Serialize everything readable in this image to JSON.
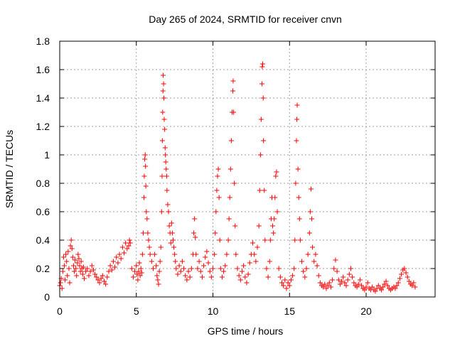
{
  "chart_data": {
    "type": "scatter",
    "title": "Day 265 of 2024, SRMTID for receiver cnvn",
    "xlabel": "GPS time / hours",
    "ylabel": "SRMTID / TECUs",
    "xlim": [
      0,
      24.5
    ],
    "ylim": [
      0,
      1.8
    ],
    "xticks": [
      0,
      5,
      10,
      15,
      20
    ],
    "xtick_labels": [
      "0",
      "5",
      "10",
      "15",
      "20"
    ],
    "yticks": [
      0,
      0.2,
      0.4,
      0.6,
      0.8,
      1.0,
      1.2,
      1.4,
      1.6,
      1.8
    ],
    "ytick_labels": [
      "0",
      "0.2",
      "0.4",
      "0.6",
      "0.8",
      "1",
      "1.2",
      "1.4",
      "1.6",
      "1.8"
    ],
    "grid": true,
    "marker": "+",
    "marker_color": "#ff0000",
    "series": [
      {
        "name": "cnvn",
        "points": [
          [
            0.0,
            0.08
          ],
          [
            0.05,
            0.1
          ],
          [
            0.1,
            0.13
          ],
          [
            0.15,
            0.06
          ],
          [
            0.2,
            0.18
          ],
          [
            0.25,
            0.28
          ],
          [
            0.3,
            0.22
          ],
          [
            0.35,
            0.12
          ],
          [
            0.4,
            0.3
          ],
          [
            0.45,
            0.25
          ],
          [
            0.5,
            0.15
          ],
          [
            0.55,
            0.32
          ],
          [
            0.6,
            0.2
          ],
          [
            0.65,
            0.1
          ],
          [
            0.7,
            0.36
          ],
          [
            0.75,
            0.4
          ],
          [
            0.8,
            0.34
          ],
          [
            0.85,
            0.28
          ],
          [
            0.9,
            0.22
          ],
          [
            0.95,
            0.18
          ],
          [
            1.0,
            0.26
          ],
          [
            1.05,
            0.2
          ],
          [
            1.1,
            0.15
          ],
          [
            1.15,
            0.24
          ],
          [
            1.2,
            0.3
          ],
          [
            1.25,
            0.27
          ],
          [
            1.3,
            0.22
          ],
          [
            1.35,
            0.18
          ],
          [
            1.4,
            0.25
          ],
          [
            1.45,
            0.2
          ],
          [
            1.5,
            0.16
          ],
          [
            1.55,
            0.21
          ],
          [
            1.6,
            0.13
          ],
          [
            1.7,
            0.18
          ],
          [
            1.8,
            0.2
          ],
          [
            1.9,
            0.15
          ],
          [
            2.0,
            0.18
          ],
          [
            2.1,
            0.22
          ],
          [
            2.2,
            0.19
          ],
          [
            2.3,
            0.16
          ],
          [
            2.4,
            0.14
          ],
          [
            2.5,
            0.12
          ],
          [
            2.6,
            0.1
          ],
          [
            2.7,
            0.13
          ],
          [
            2.8,
            0.15
          ],
          [
            2.9,
            0.11
          ],
          [
            3.0,
            0.09
          ],
          [
            3.1,
            0.14
          ],
          [
            3.2,
            0.18
          ],
          [
            3.3,
            0.22
          ],
          [
            3.4,
            0.19
          ],
          [
            3.5,
            0.25
          ],
          [
            3.6,
            0.21
          ],
          [
            3.7,
            0.28
          ],
          [
            3.8,
            0.24
          ],
          [
            3.9,
            0.3
          ],
          [
            4.0,
            0.27
          ],
          [
            4.1,
            0.35
          ],
          [
            4.2,
            0.31
          ],
          [
            4.3,
            0.38
          ],
          [
            4.4,
            0.34
          ],
          [
            4.5,
            0.36
          ],
          [
            4.55,
            0.4
          ],
          [
            4.6,
            0.38
          ],
          [
            4.7,
            0.2
          ],
          [
            4.8,
            0.14
          ],
          [
            4.9,
            0.18
          ],
          [
            5.0,
            0.22
          ],
          [
            5.05,
            0.16
          ],
          [
            5.1,
            0.12
          ],
          [
            5.15,
            0.18
          ],
          [
            5.2,
            0.24
          ],
          [
            5.25,
            0.15
          ],
          [
            5.3,
            0.2
          ],
          [
            5.35,
            0.17
          ],
          [
            5.4,
            0.3
          ],
          [
            5.45,
            0.45
          ],
          [
            5.5,
            0.7
          ],
          [
            5.52,
            0.85
          ],
          [
            5.55,
            0.97
          ],
          [
            5.58,
            1.0
          ],
          [
            5.6,
            0.92
          ],
          [
            5.62,
            0.78
          ],
          [
            5.65,
            0.6
          ],
          [
            5.7,
            0.55
          ],
          [
            5.75,
            0.45
          ],
          [
            5.8,
            0.4
          ],
          [
            5.85,
            0.35
          ],
          [
            5.9,
            0.3
          ],
          [
            6.0,
            0.25
          ],
          [
            6.1,
            0.2
          ],
          [
            6.2,
            0.3
          ],
          [
            6.3,
            0.22
          ],
          [
            6.35,
            0.15
          ],
          [
            6.4,
            0.12
          ],
          [
            6.45,
            0.09
          ],
          [
            6.5,
            0.18
          ],
          [
            6.55,
            0.25
          ],
          [
            6.6,
            0.35
          ],
          [
            6.65,
            0.6
          ],
          [
            6.68,
            0.85
          ],
          [
            6.7,
            1.1
          ],
          [
            6.72,
            1.3
          ],
          [
            6.74,
            1.45
          ],
          [
            6.75,
            1.56
          ],
          [
            6.78,
            1.5
          ],
          [
            6.8,
            1.4
          ],
          [
            6.82,
            1.25
          ],
          [
            6.85,
            1.18
          ],
          [
            6.88,
            1.05
          ],
          [
            6.9,
            1.0
          ],
          [
            6.92,
            0.95
          ],
          [
            6.95,
            0.9
          ],
          [
            6.98,
            0.85
          ],
          [
            7.0,
            0.75
          ],
          [
            7.05,
            0.65
          ],
          [
            7.1,
            0.6
          ],
          [
            7.15,
            0.5
          ],
          [
            7.2,
            0.45
          ],
          [
            7.25,
            0.38
          ],
          [
            7.3,
            0.52
          ],
          [
            7.35,
            0.45
          ],
          [
            7.4,
            0.4
          ],
          [
            7.45,
            0.35
          ],
          [
            7.5,
            0.3
          ],
          [
            7.55,
            0.25
          ],
          [
            7.6,
            0.2
          ],
          [
            7.7,
            0.16
          ],
          [
            7.8,
            0.22
          ],
          [
            7.9,
            0.18
          ],
          [
            8.0,
            0.25
          ],
          [
            8.1,
            0.2
          ],
          [
            8.2,
            0.15
          ],
          [
            8.3,
            0.12
          ],
          [
            8.4,
            0.18
          ],
          [
            8.5,
            0.14
          ],
          [
            8.6,
            0.2
          ],
          [
            8.7,
            0.3
          ],
          [
            8.75,
            0.45
          ],
          [
            8.8,
            0.55
          ],
          [
            8.85,
            0.42
          ],
          [
            8.9,
            0.3
          ],
          [
            9.0,
            0.2
          ],
          [
            9.1,
            0.25
          ],
          [
            9.2,
            0.18
          ],
          [
            9.3,
            0.14
          ],
          [
            9.4,
            0.22
          ],
          [
            9.5,
            0.28
          ],
          [
            9.6,
            0.32
          ],
          [
            9.7,
            0.24
          ],
          [
            9.8,
            0.18
          ],
          [
            9.9,
            0.14
          ],
          [
            10.0,
            0.2
          ],
          [
            10.1,
            0.3
          ],
          [
            10.15,
            0.45
          ],
          [
            10.2,
            0.6
          ],
          [
            10.25,
            0.75
          ],
          [
            10.3,
            0.85
          ],
          [
            10.35,
            0.9
          ],
          [
            10.4,
            0.7
          ],
          [
            10.45,
            0.4
          ],
          [
            10.5,
            0.2
          ],
          [
            10.6,
            0.14
          ],
          [
            10.7,
            0.18
          ],
          [
            10.8,
            0.22
          ],
          [
            10.9,
            0.3
          ],
          [
            11.0,
            0.4
          ],
          [
            11.05,
            0.55
          ],
          [
            11.1,
            0.7
          ],
          [
            11.15,
            0.9
          ],
          [
            11.2,
            1.1
          ],
          [
            11.25,
            1.3
          ],
          [
            11.3,
            1.45
          ],
          [
            11.32,
            1.52
          ],
          [
            11.35,
            1.3
          ],
          [
            11.4,
            0.8
          ],
          [
            11.45,
            0.5
          ],
          [
            11.5,
            0.3
          ],
          [
            11.6,
            0.2
          ],
          [
            11.7,
            0.15
          ],
          [
            11.8,
            0.12
          ],
          [
            11.9,
            0.18
          ],
          [
            12.0,
            0.22
          ],
          [
            12.1,
            0.14
          ],
          [
            12.2,
            0.1
          ],
          [
            12.3,
            0.16
          ],
          [
            12.4,
            0.24
          ],
          [
            12.5,
            0.3
          ],
          [
            12.6,
            0.38
          ],
          [
            12.7,
            0.3
          ],
          [
            12.8,
            0.25
          ],
          [
            12.9,
            0.35
          ],
          [
            13.0,
            0.5
          ],
          [
            13.05,
            0.75
          ],
          [
            13.1,
            1.0
          ],
          [
            13.15,
            1.25
          ],
          [
            13.2,
            1.5
          ],
          [
            13.22,
            1.62
          ],
          [
            13.25,
            1.64
          ],
          [
            13.28,
            1.4
          ],
          [
            13.3,
            1.1
          ],
          [
            13.35,
            0.75
          ],
          [
            13.4,
            0.4
          ],
          [
            13.5,
            0.2
          ],
          [
            13.6,
            0.14
          ],
          [
            13.7,
            0.25
          ],
          [
            13.75,
            0.4
          ],
          [
            13.8,
            0.55
          ],
          [
            13.85,
            0.7
          ],
          [
            13.9,
            0.5
          ],
          [
            13.95,
            0.45
          ],
          [
            14.0,
            0.55
          ],
          [
            14.05,
            0.7
          ],
          [
            14.1,
            0.85
          ],
          [
            14.15,
            0.88
          ],
          [
            14.2,
            0.6
          ],
          [
            14.3,
            0.2
          ],
          [
            14.4,
            0.14
          ],
          [
            14.5,
            0.1
          ],
          [
            14.6,
            0.08
          ],
          [
            14.7,
            0.12
          ],
          [
            14.8,
            0.06
          ],
          [
            14.9,
            0.1
          ],
          [
            15.0,
            0.08
          ],
          [
            15.1,
            0.12
          ],
          [
            15.2,
            0.15
          ],
          [
            15.3,
            0.2
          ],
          [
            15.35,
            0.4
          ],
          [
            15.4,
            0.8
          ],
          [
            15.45,
            1.1
          ],
          [
            15.48,
            1.25
          ],
          [
            15.5,
            1.35
          ],
          [
            15.55,
            0.9
          ],
          [
            15.6,
            0.7
          ],
          [
            15.65,
            0.55
          ],
          [
            15.7,
            0.4
          ],
          [
            15.8,
            0.25
          ],
          [
            15.9,
            0.18
          ],
          [
            16.0,
            0.14
          ],
          [
            16.1,
            0.2
          ],
          [
            16.2,
            0.3
          ],
          [
            16.3,
            0.45
          ],
          [
            16.35,
            0.6
          ],
          [
            16.4,
            0.76
          ],
          [
            16.45,
            0.55
          ],
          [
            16.5,
            0.35
          ],
          [
            16.6,
            0.25
          ],
          [
            16.7,
            0.3
          ],
          [
            16.8,
            0.22
          ],
          [
            16.9,
            0.15
          ],
          [
            17.0,
            0.1
          ],
          [
            17.1,
            0.08
          ],
          [
            17.2,
            0.07
          ],
          [
            17.3,
            0.09
          ],
          [
            17.4,
            0.06
          ],
          [
            17.5,
            0.08
          ],
          [
            17.6,
            0.1
          ],
          [
            17.7,
            0.07
          ],
          [
            17.8,
            0.12
          ],
          [
            17.9,
            0.2
          ],
          [
            18.0,
            0.26
          ],
          [
            18.1,
            0.18
          ],
          [
            18.2,
            0.12
          ],
          [
            18.3,
            0.09
          ],
          [
            18.4,
            0.11
          ],
          [
            18.5,
            0.14
          ],
          [
            18.6,
            0.1
          ],
          [
            18.7,
            0.08
          ],
          [
            18.8,
            0.12
          ],
          [
            18.9,
            0.16
          ],
          [
            19.0,
            0.2
          ],
          [
            19.1,
            0.14
          ],
          [
            19.2,
            0.1
          ],
          [
            19.3,
            0.08
          ],
          [
            19.4,
            0.07
          ],
          [
            19.5,
            0.09
          ],
          [
            19.6,
            0.12
          ],
          [
            19.7,
            0.08
          ],
          [
            19.8,
            0.06
          ],
          [
            19.9,
            0.05
          ],
          [
            20.0,
            0.07
          ],
          [
            20.1,
            0.1
          ],
          [
            20.2,
            0.06
          ],
          [
            20.3,
            0.05
          ],
          [
            20.4,
            0.07
          ],
          [
            20.5,
            0.05
          ],
          [
            20.6,
            0.04
          ],
          [
            20.7,
            0.06
          ],
          [
            20.8,
            0.08
          ],
          [
            20.9,
            0.06
          ],
          [
            21.0,
            0.05
          ],
          [
            21.1,
            0.07
          ],
          [
            21.2,
            0.09
          ],
          [
            21.3,
            0.11
          ],
          [
            21.4,
            0.08
          ],
          [
            21.5,
            0.06
          ],
          [
            21.6,
            0.05
          ],
          [
            21.7,
            0.06
          ],
          [
            21.8,
            0.07
          ],
          [
            21.9,
            0.06
          ],
          [
            22.0,
            0.08
          ],
          [
            22.1,
            0.1
          ],
          [
            22.2,
            0.13
          ],
          [
            22.3,
            0.16
          ],
          [
            22.4,
            0.19
          ],
          [
            22.5,
            0.2
          ],
          [
            22.6,
            0.17
          ],
          [
            22.7,
            0.14
          ],
          [
            22.8,
            0.11
          ],
          [
            22.9,
            0.09
          ],
          [
            23.0,
            0.08
          ],
          [
            23.1,
            0.1
          ],
          [
            23.2,
            0.07
          ]
        ]
      }
    ]
  }
}
